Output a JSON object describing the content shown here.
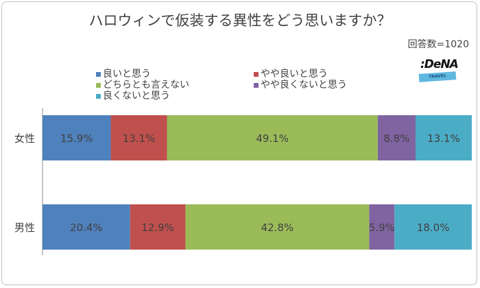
{
  "chart_data": {
    "type": "bar",
    "orientation": "horizontal-stacked-100",
    "title": "ハロウィンで仮装する異性をどう思いますか？",
    "annotation": "回答数=1020",
    "categories": [
      "女性",
      "男性"
    ],
    "series": [
      {
        "name": "良いと思う",
        "color": "#4f81bd",
        "values": [
          15.9,
          20.4
        ],
        "labels": [
          "15.9%",
          "20.4%"
        ]
      },
      {
        "name": "やや良いと思う",
        "color": "#c0504d",
        "values": [
          13.1,
          12.9
        ],
        "labels": [
          "13.1%",
          "12.9%"
        ]
      },
      {
        "name": "どちらとも言えない",
        "color": "#9bbb59",
        "values": [
          49.1,
          42.8
        ],
        "labels": [
          "49.1%",
          "42.8%"
        ]
      },
      {
        "name": "やや良くないと思う",
        "color": "#8064a2",
        "values": [
          8.8,
          5.9
        ],
        "labels": [
          "8.8%",
          "5.9%"
        ]
      },
      {
        "name": "良くないと思う",
        "color": "#4bacc6",
        "values": [
          13.1,
          18.0
        ],
        "labels": [
          "13.1%",
          "18.0%"
        ]
      }
    ],
    "xlim": [
      0,
      100
    ],
    "grid": false,
    "legend_position": "top"
  },
  "logo": {
    "brand": ":DeNA",
    "sub": "TRAVEL"
  }
}
